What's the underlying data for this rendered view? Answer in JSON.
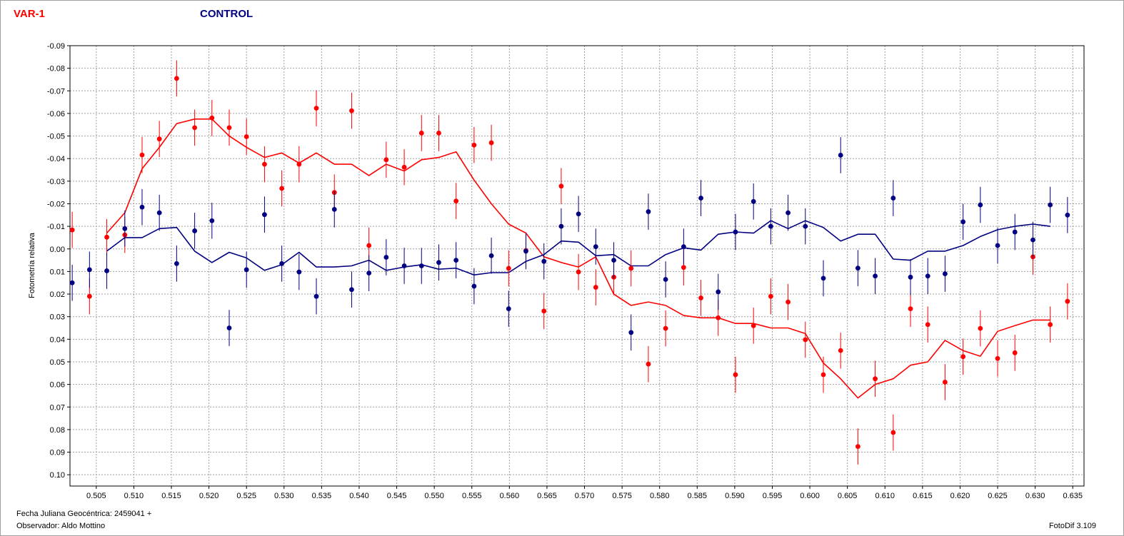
{
  "header": {
    "var_label": "VAR-1",
    "control_label": "CONTROL"
  },
  "footer": {
    "jd_label": "Fecha Juliana Geocéntrica: 2459041 +",
    "observer_label": "Observador: Aldo Mottino",
    "software_label": "FotoDif 3.109"
  },
  "colors": {
    "var": "#ff0000",
    "control": "#000080",
    "grid": "#a0a0a0",
    "axis": "#000000"
  },
  "chart_data": {
    "type": "scatter",
    "ylabel": "Fotometría relativa",
    "xlabel": "",
    "xlim": [
      0.5015,
      0.6365
    ],
    "ylim": [
      -0.09,
      0.105
    ],
    "y_inverted": true,
    "grid": true,
    "x_tick_values": [
      0.505,
      0.51,
      0.515,
      0.52,
      0.525,
      0.53,
      0.535,
      0.54,
      0.545,
      0.55,
      0.555,
      0.56,
      0.565,
      0.57,
      0.575,
      0.58,
      0.585,
      0.59,
      0.595,
      0.6,
      0.605,
      0.61,
      0.615,
      0.62,
      0.625,
      0.63,
      0.635
    ],
    "x_tick_labels": [
      "0.505",
      "0.510",
      "0.515",
      "0.520",
      "0.525",
      "0.530",
      "0.535",
      "0.540",
      "0.545",
      "0.550",
      "0.555",
      "0.560",
      "0.565",
      "0.570",
      "0.575",
      "0.580",
      "0.585",
      "0.590",
      "0.595",
      "0.600",
      "0.605",
      "0.610",
      "0.615",
      "0.620",
      "0.625",
      "0.630",
      "0.635"
    ],
    "y_tick_values": [
      -0.09,
      -0.08,
      -0.07,
      -0.06,
      -0.05,
      -0.04,
      -0.03,
      -0.02,
      -0.01,
      0.0,
      0.01,
      0.02,
      0.03,
      0.04,
      0.05,
      0.06,
      0.07,
      0.08,
      0.09,
      0.1
    ],
    "y_tick_labels": [
      "-0.09",
      "-0.08",
      "-0.07",
      "-0.06",
      "-0.05",
      "-0.04",
      "-0.03",
      "-0.02",
      "-0.01",
      "0.00",
      "0.01",
      "0.02",
      "0.03",
      "0.04",
      "0.05",
      "0.06",
      "0.07",
      "0.08",
      "0.09",
      "0.10"
    ],
    "error_bar": 0.008,
    "series": [
      {
        "name": "VAR-1",
        "color": "#ff0000",
        "x": [
          0.5018,
          0.5041,
          0.5064,
          0.5088,
          0.5111,
          0.5134,
          0.5157,
          0.5181,
          0.5204,
          0.5227,
          0.525,
          0.5274,
          0.5297,
          0.532,
          0.5343,
          0.5367,
          0.539,
          0.5413,
          0.5436,
          0.546,
          0.5483,
          0.5506,
          0.5529,
          0.5553,
          0.5576,
          0.5599,
          0.5622,
          0.5646,
          0.5669,
          0.5692,
          0.5715,
          0.5739,
          0.5762,
          0.5785,
          0.5808,
          0.5832,
          0.5855,
          0.5878,
          0.5901,
          0.5925,
          0.5948,
          0.5971,
          0.5994,
          0.6018,
          0.6041,
          0.6064,
          0.6087,
          0.6111,
          0.6134,
          0.6157,
          0.618,
          0.6204,
          0.6227,
          0.625,
          0.6273,
          0.6297,
          0.632,
          0.6343
        ],
        "y": [
          -0.0084,
          0.021,
          -0.0052,
          -0.0062,
          -0.0416,
          -0.0487,
          -0.0755,
          -0.0537,
          -0.058,
          -0.0537,
          -0.0497,
          -0.0375,
          -0.0268,
          -0.0375,
          -0.0623,
          -0.025,
          -0.0612,
          -0.0015,
          -0.0395,
          -0.0362,
          -0.0513,
          -0.0513,
          -0.0212,
          -0.046,
          -0.047,
          0.0086,
          0.0007,
          0.0275,
          -0.0278,
          0.0102,
          0.017,
          0.0125,
          0.0086,
          0.051,
          0.0352,
          0.0082,
          0.0217,
          0.0305,
          0.0557,
          0.034,
          0.021,
          0.0235,
          0.0402,
          0.0557,
          0.045,
          0.0875,
          0.0575,
          0.0813,
          0.0265,
          0.0335,
          0.059,
          0.0477,
          0.0352,
          0.0485,
          0.046,
          0.0035,
          0.0335,
          0.0232
        ]
      },
      {
        "name": "CONTROL",
        "color": "#000080",
        "x": [
          0.5018,
          0.5041,
          0.5064,
          0.5088,
          0.5111,
          0.5134,
          0.5157,
          0.5181,
          0.5204,
          0.5227,
          0.525,
          0.5274,
          0.5297,
          0.532,
          0.5343,
          0.5367,
          0.539,
          0.5413,
          0.5436,
          0.546,
          0.5483,
          0.5506,
          0.5529,
          0.5553,
          0.5576,
          0.5599,
          0.5622,
          0.5646,
          0.5669,
          0.5692,
          0.5715,
          0.5739,
          0.5762,
          0.5785,
          0.5808,
          0.5832,
          0.5855,
          0.5878,
          0.5901,
          0.5925,
          0.5948,
          0.5971,
          0.5994,
          0.6018,
          0.6041,
          0.6064,
          0.6087,
          0.6111,
          0.6134,
          0.6157,
          0.618,
          0.6204,
          0.6227,
          0.625,
          0.6273,
          0.6297,
          0.632,
          0.6343
        ],
        "y": [
          0.015,
          0.0092,
          0.0097,
          -0.009,
          -0.0185,
          -0.016,
          0.0065,
          -0.008,
          -0.0125,
          0.035,
          0.0092,
          -0.0152,
          0.0065,
          0.0102,
          0.021,
          -0.0175,
          0.018,
          0.0107,
          0.0037,
          0.0075,
          0.0075,
          0.006,
          0.005,
          0.0165,
          0.003,
          0.0265,
          0.001,
          0.0055,
          -0.01,
          -0.0155,
          -0.001,
          0.005,
          0.037,
          -0.0165,
          0.0135,
          -0.001,
          -0.0225,
          0.019,
          -0.0075,
          -0.021,
          -0.01,
          -0.016,
          -0.01,
          0.013,
          -0.0415,
          0.0085,
          0.012,
          -0.0225,
          0.0125,
          0.012,
          0.011,
          -0.012,
          -0.0195,
          -0.0015,
          -0.0075,
          -0.004,
          -0.0195,
          -0.015
        ]
      }
    ],
    "trend_lines": [
      {
        "name": "VAR-1",
        "color": "#ff0000",
        "x": [
          0.5064,
          0.5088,
          0.5111,
          0.5134,
          0.5157,
          0.5181,
          0.5204,
          0.5227,
          0.525,
          0.5274,
          0.5297,
          0.532,
          0.5343,
          0.5367,
          0.539,
          0.5413,
          0.5436,
          0.546,
          0.5483,
          0.5506,
          0.5529,
          0.5553,
          0.5576,
          0.5599,
          0.5622,
          0.5646,
          0.5669,
          0.5692,
          0.5715,
          0.5739,
          0.5762,
          0.5785,
          0.5808,
          0.5832,
          0.5855,
          0.5878,
          0.5901,
          0.5925,
          0.5948,
          0.5971,
          0.5994,
          0.6018,
          0.6041,
          0.6064,
          0.6087,
          0.6111,
          0.6134,
          0.6157,
          0.618,
          0.6204,
          0.6227,
          0.625,
          0.6273,
          0.6297,
          0.632
        ],
        "y": [
          -0.007,
          -0.016,
          -0.0355,
          -0.045,
          -0.0555,
          -0.0575,
          -0.0575,
          -0.05,
          -0.045,
          -0.0405,
          -0.0425,
          -0.038,
          -0.0425,
          -0.0375,
          -0.0375,
          -0.0325,
          -0.0375,
          -0.0345,
          -0.0395,
          -0.0405,
          -0.043,
          -0.0305,
          -0.02,
          -0.011,
          -0.007,
          0.0035,
          0.006,
          0.008,
          0.0035,
          0.02,
          0.025,
          0.0235,
          0.025,
          0.0295,
          0.0305,
          0.0305,
          0.033,
          0.033,
          0.035,
          0.035,
          0.0375,
          0.0505,
          0.0575,
          0.066,
          0.06,
          0.0575,
          0.0515,
          0.05,
          0.0405,
          0.045,
          0.0475,
          0.0365,
          0.034,
          0.0315,
          0.0315
        ]
      },
      {
        "name": "CONTROL",
        "color": "#000080",
        "x": [
          0.5064,
          0.5088,
          0.5111,
          0.5134,
          0.5157,
          0.5181,
          0.5204,
          0.5227,
          0.525,
          0.5274,
          0.5297,
          0.532,
          0.5343,
          0.5367,
          0.539,
          0.5413,
          0.5436,
          0.546,
          0.5483,
          0.5506,
          0.5529,
          0.5553,
          0.5576,
          0.5599,
          0.5622,
          0.5646,
          0.5669,
          0.5692,
          0.5715,
          0.5739,
          0.5762,
          0.5785,
          0.5808,
          0.5832,
          0.5855,
          0.5878,
          0.5901,
          0.5925,
          0.5948,
          0.5971,
          0.5994,
          0.6018,
          0.6041,
          0.6064,
          0.6087,
          0.6111,
          0.6134,
          0.6157,
          0.618,
          0.6204,
          0.6227,
          0.625,
          0.6273,
          0.6297,
          0.632
        ],
        "y": [
          0.001,
          -0.005,
          -0.005,
          -0.009,
          -0.0095,
          0.001,
          0.006,
          0.0015,
          0.004,
          0.0095,
          0.007,
          0.0015,
          0.008,
          0.008,
          0.0075,
          0.005,
          0.0095,
          0.008,
          0.007,
          0.009,
          0.0085,
          0.0115,
          0.0105,
          0.0105,
          0.0055,
          0.0025,
          -0.0035,
          -0.003,
          0.003,
          0.0025,
          0.0075,
          0.0075,
          0.0025,
          -0.0005,
          0.0005,
          -0.0065,
          -0.0075,
          -0.007,
          -0.0125,
          -0.009,
          -0.0125,
          -0.0095,
          -0.0035,
          -0.0065,
          -0.0065,
          0.0045,
          0.005,
          0.001,
          0.001,
          -0.0015,
          -0.0055,
          -0.0085,
          -0.01,
          -0.011,
          -0.01
        ]
      }
    ]
  }
}
